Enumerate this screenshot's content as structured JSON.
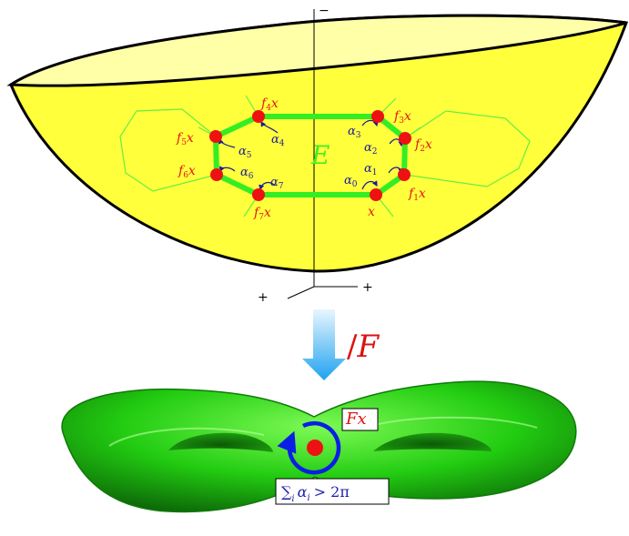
{
  "axes": {
    "top_sign": "−",
    "right_sign": "+",
    "left_sign": "+"
  },
  "region_label": "E",
  "points": [
    {
      "label": "x",
      "sub": ""
    },
    {
      "label": "f",
      "sub": "1",
      "suffix": "x"
    },
    {
      "label": "f",
      "sub": "2",
      "suffix": "x"
    },
    {
      "label": "f",
      "sub": "3",
      "suffix": "x"
    },
    {
      "label": "f",
      "sub": "4",
      "suffix": "x"
    },
    {
      "label": "f",
      "sub": "5",
      "suffix": "x"
    },
    {
      "label": "f",
      "sub": "6",
      "suffix": "x"
    },
    {
      "label": "f",
      "sub": "7",
      "suffix": "x"
    }
  ],
  "angles": [
    {
      "sym": "α",
      "sub": "0"
    },
    {
      "sym": "α",
      "sub": "1"
    },
    {
      "sym": "α",
      "sub": "2"
    },
    {
      "sym": "α",
      "sub": "3"
    },
    {
      "sym": "α",
      "sub": "4"
    },
    {
      "sym": "α",
      "sub": "5"
    },
    {
      "sym": "α",
      "sub": "6"
    },
    {
      "sym": "α",
      "sub": "7"
    }
  ],
  "quotient": {
    "slash": "/",
    "letter": "F"
  },
  "torus_point_label": "Fx",
  "angle_sum": {
    "sum": "∑",
    "sub": "i",
    "body": "α",
    "body_sub": "i",
    "rel": "> 2π"
  },
  "colors": {
    "bowl_fill": "#ffff3c",
    "bowl_rim_inner": "#ffffa8",
    "polygon_edge": "#33ee22",
    "thin_green": "#66ee44",
    "point_red": "#ee1111",
    "arrow_blue": "#2266dd",
    "torus_green": "#22cc11",
    "circle_blue": "#0a1ee6"
  }
}
